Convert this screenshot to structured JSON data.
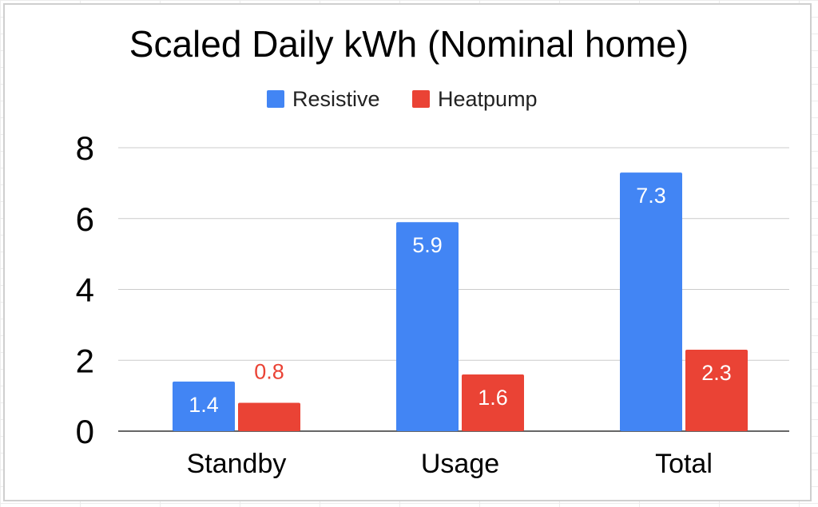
{
  "chart_data": {
    "type": "bar",
    "title": "Scaled Daily kWh (Nominal home)",
    "xlabel": "",
    "ylabel": "",
    "categories": [
      "Standby",
      "Usage",
      "Total"
    ],
    "series": [
      {
        "name": "Resistive",
        "color": "#4285f4",
        "values": [
          1.4,
          5.9,
          7.3
        ],
        "labels": [
          "1.4",
          "5.9",
          "7.3"
        ]
      },
      {
        "name": "Heatpump",
        "color": "#ea4335",
        "values": [
          0.8,
          1.6,
          2.3
        ],
        "labels": [
          "0.8",
          "1.6",
          "2.3"
        ]
      }
    ],
    "ylim": [
      0,
      8
    ],
    "yticks": [
      0,
      2,
      4,
      6,
      8
    ],
    "grid": true,
    "legend_position": "top-center"
  }
}
